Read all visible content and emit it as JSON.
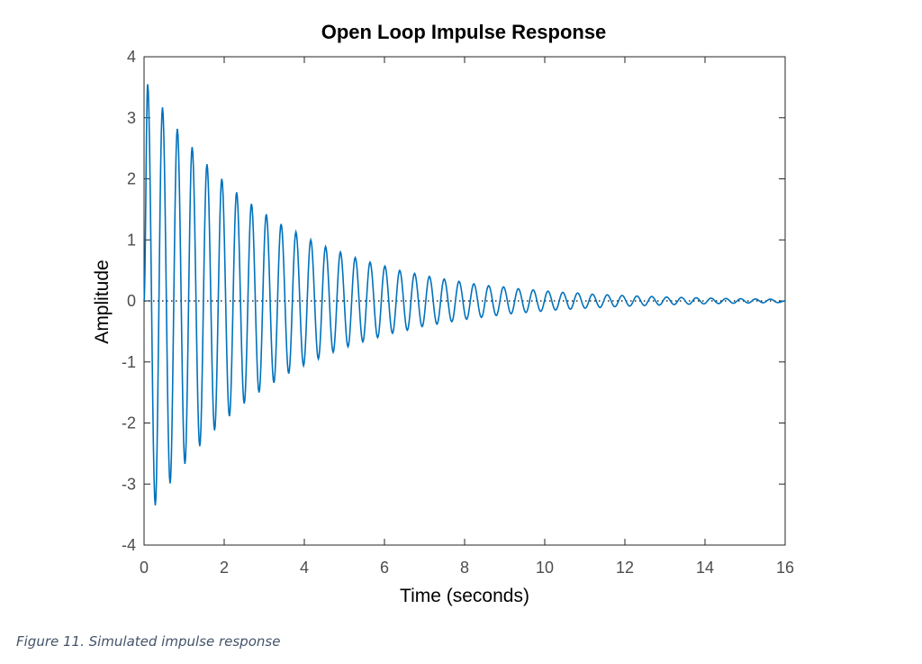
{
  "chart_data": {
    "type": "line",
    "title": "Open Loop Impulse Response",
    "xlabel": "Time (seconds)",
    "ylabel": "Amplitude",
    "xlim": [
      0,
      16
    ],
    "ylim": [
      -4,
      4
    ],
    "xticks": [
      "0",
      "2",
      "4",
      "6",
      "8",
      "10",
      "12",
      "14",
      "16"
    ],
    "yticks": [
      "4",
      "3",
      "2",
      "1",
      "0",
      "-1",
      "-2",
      "-3",
      "-4"
    ],
    "grid": false,
    "zero_line": "dotted",
    "line_color": "#0072BD",
    "series": [
      {
        "x": [
          0,
          0.09,
          0.28,
          0.46,
          0.65,
          0.83,
          1.02,
          1.2,
          1.39,
          1.57,
          1.76,
          1.94,
          2.13,
          2.31,
          2.5,
          2.68,
          2.87,
          3.05,
          3.24,
          3.42,
          3.61,
          3.79,
          3.98,
          4.16,
          4.35,
          4.53,
          4.72,
          4.9,
          5.09,
          5.27,
          5.46,
          5.64,
          5.83,
          6.01,
          6.2,
          6.38,
          6.57,
          6.75,
          6.94,
          7.12,
          7.31,
          7.49,
          7.68,
          7.86,
          8.05,
          8.23,
          8.42,
          8.6,
          8.79,
          8.97,
          9.16,
          9.34,
          9.53,
          9.71,
          9.9,
          10.08,
          10.27,
          10.45,
          10.64,
          10.82,
          11.01,
          11.19,
          11.38,
          11.56,
          11.75,
          11.93,
          12.12,
          12.3,
          12.49,
          12.67,
          12.86,
          13.04,
          13.23,
          13.41,
          13.6,
          13.78,
          13.97,
          14.15,
          14.34,
          14.52,
          14.71,
          14.89,
          15.08,
          15.26,
          15.45,
          15.63,
          15.82,
          16.0
        ],
        "y": [
          0,
          3.55,
          -3.35,
          3.17,
          -2.99,
          2.82,
          -2.67,
          2.52,
          -2.38,
          2.24,
          -2.12,
          2.0,
          -1.89,
          1.78,
          -1.68,
          1.59,
          -1.5,
          1.42,
          -1.34,
          1.26,
          -1.19,
          1.13,
          -1.06,
          1.0,
          -0.95,
          0.89,
          -0.84,
          0.8,
          -0.75,
          0.71,
          -0.67,
          0.635,
          -0.6,
          0.57,
          -0.53,
          0.5,
          -0.48,
          0.45,
          -0.42,
          0.4,
          -0.38,
          0.358,
          -0.34,
          0.32,
          -0.3,
          0.28,
          -0.27,
          0.25,
          -0.24,
          0.23,
          -0.21,
          0.2,
          -0.19,
          0.18,
          -0.17,
          0.16,
          -0.15,
          0.14,
          -0.135,
          0.13,
          -0.12,
          0.11,
          -0.107,
          0.1,
          -0.095,
          0.09,
          -0.085,
          0.08,
          -0.076,
          0.072,
          -0.068,
          0.064,
          -0.06,
          0.057,
          -0.054,
          0.051,
          -0.048,
          0.045,
          -0.043,
          0.04,
          -0.038,
          0.036,
          -0.034,
          0.032,
          -0.03,
          0.029,
          -0.027,
          0
        ]
      }
    ]
  },
  "caption": "Figure 11. Simulated impulse response"
}
